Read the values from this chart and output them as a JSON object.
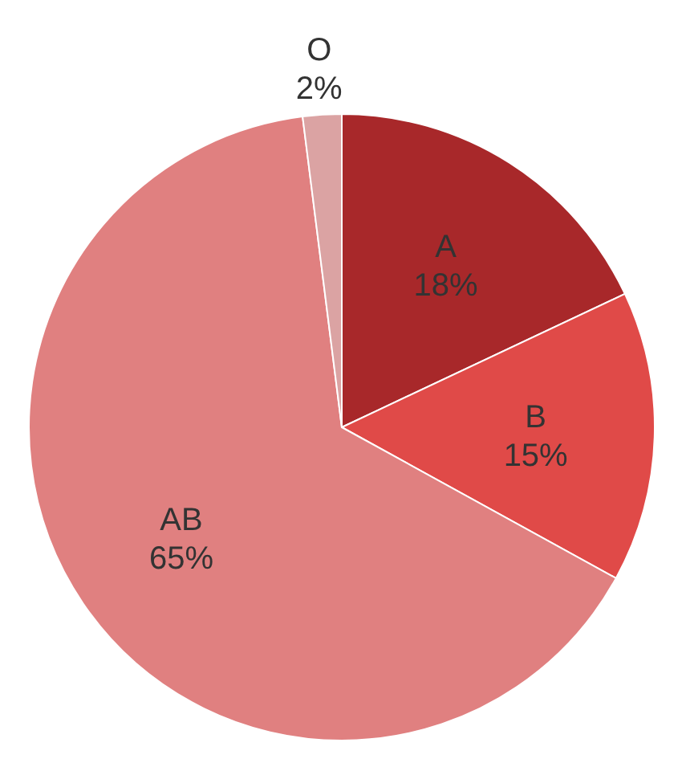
{
  "chart_data": {
    "type": "pie",
    "categories": [
      "A",
      "B",
      "AB",
      "O"
    ],
    "values": [
      18,
      15,
      65,
      2
    ],
    "value_labels": [
      "18%",
      "15%",
      "65%",
      "2%"
    ],
    "colors": [
      "#a8282a",
      "#e04a48",
      "#e08080",
      "#dba3a3"
    ],
    "legend": false
  }
}
